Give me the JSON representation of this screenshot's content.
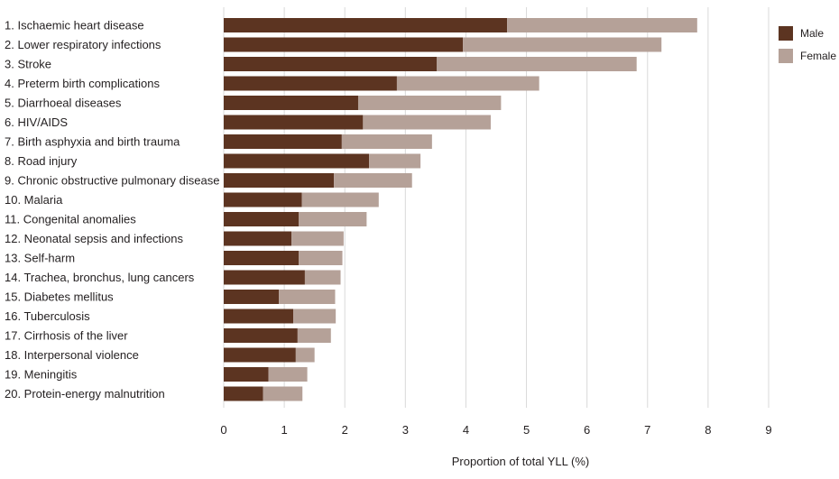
{
  "chart_data": {
    "type": "bar",
    "orientation": "horizontal",
    "stacked": true,
    "categories": [
      "1. Ischaemic heart disease",
      "2. Lower respiratory infections",
      "3. Stroke",
      "4. Preterm birth complications",
      "5. Diarrhoeal diseases",
      "6. HIV/AIDS",
      "7. Birth asphyxia and birth trauma",
      "8. Road injury",
      "9. Chronic obstructive pulmonary disease",
      "10. Malaria",
      "11. Congenital anomalies",
      "12. Neonatal sepsis and infections",
      "13. Self-harm",
      "14. Trachea, bronchus, lung cancers",
      "15. Diabetes mellitus",
      "16. Tuberculosis",
      "17. Cirrhosis of the liver",
      "18. Interpersonal violence",
      "19. Meningitis",
      "20. Protein-energy malnutrition"
    ],
    "series": [
      {
        "name": "Male",
        "color": "#5c3421",
        "values": [
          4.68,
          3.95,
          3.52,
          2.86,
          2.22,
          2.3,
          1.95,
          2.4,
          1.82,
          1.29,
          1.24,
          1.12,
          1.24,
          1.34,
          0.91,
          1.15,
          1.22,
          1.19,
          0.74,
          0.65
        ]
      },
      {
        "name": "Female",
        "color": "#b5a198",
        "values": [
          3.14,
          3.28,
          3.3,
          2.35,
          2.36,
          2.11,
          1.49,
          0.85,
          1.29,
          1.27,
          1.12,
          0.86,
          0.72,
          0.59,
          0.93,
          0.7,
          0.55,
          0.31,
          0.64,
          0.65
        ]
      }
    ],
    "xlabel": "Proportion of total YLL (%)",
    "ylabel": "",
    "title": "",
    "xlim": [
      0,
      9
    ],
    "xticks": [
      0,
      1,
      2,
      3,
      4,
      5,
      6,
      7,
      8,
      9
    ],
    "grid": "vertical",
    "legend": "top-right"
  }
}
